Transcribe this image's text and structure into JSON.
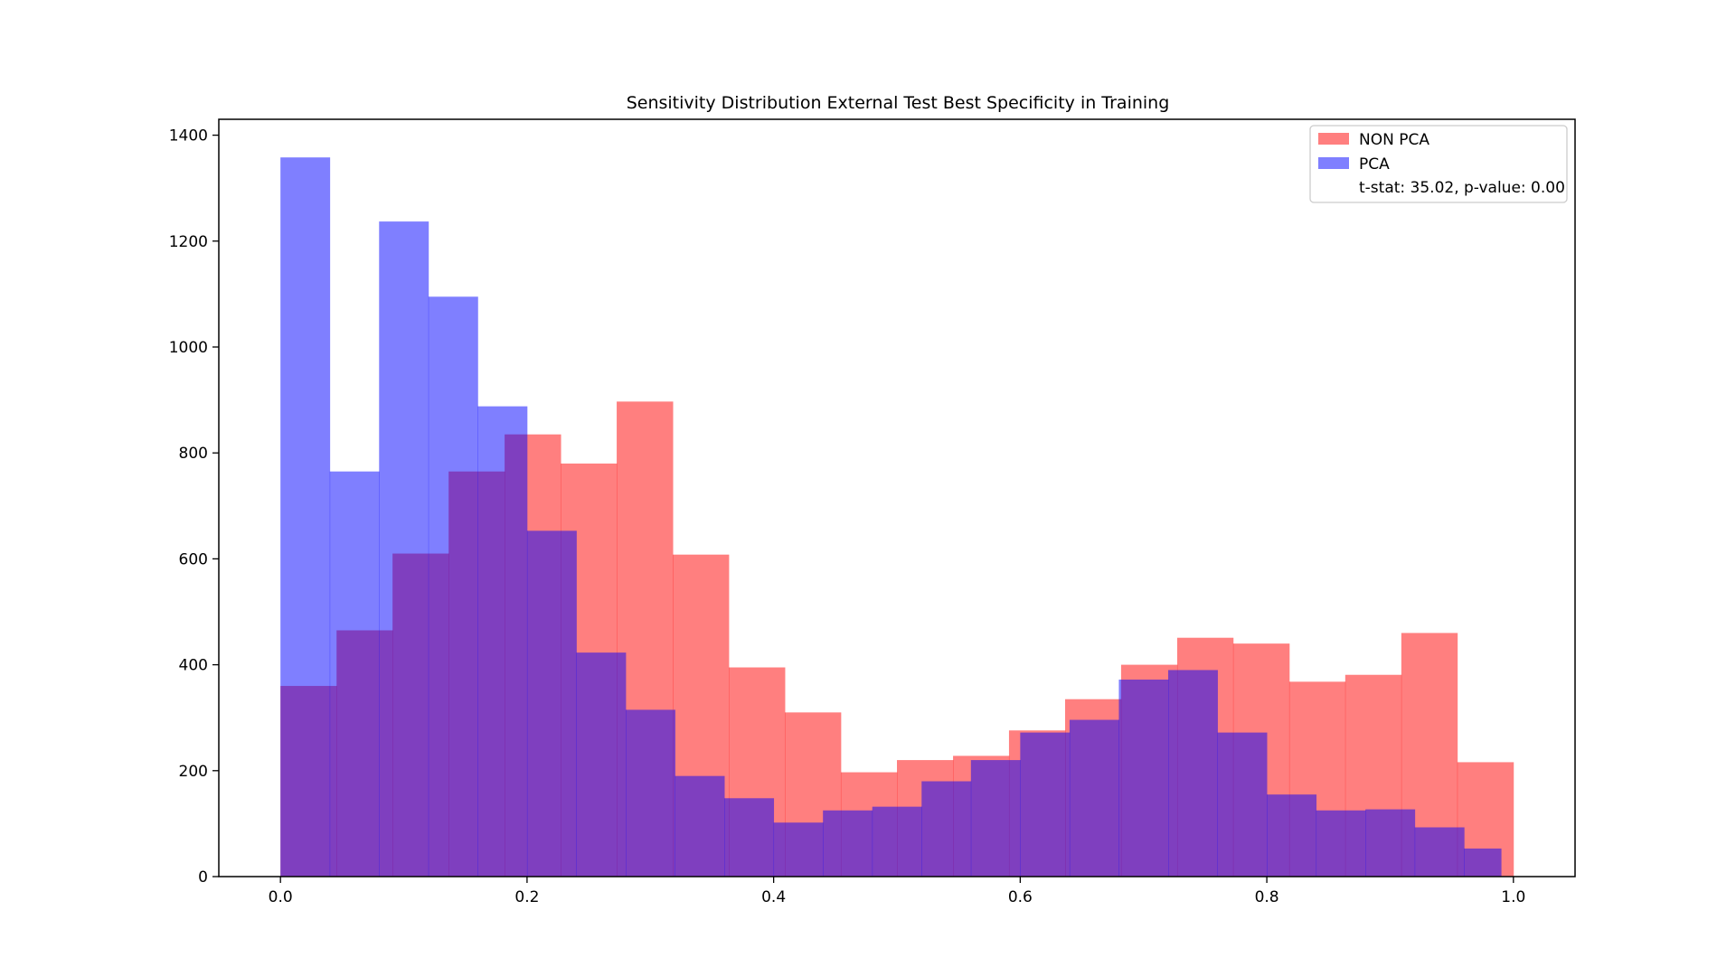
{
  "chart_data": {
    "type": "bar",
    "title": "Sensitivity Distribution External Test Best Specificity in Training",
    "xlabel": "",
    "ylabel": "",
    "xlim": [
      -0.05,
      1.05
    ],
    "ylim": [
      0,
      1430
    ],
    "xticks": [
      0.0,
      0.2,
      0.4,
      0.6,
      0.8,
      1.0
    ],
    "xtick_labels": [
      "0.0",
      "0.2",
      "0.4",
      "0.6",
      "0.8",
      "1.0"
    ],
    "yticks": [
      0,
      200,
      400,
      600,
      800,
      1000,
      1200,
      1400
    ],
    "ytick_labels": [
      "0",
      "200",
      "400",
      "600",
      "800",
      "1000",
      "1200",
      "1400"
    ],
    "grid": false,
    "legend_position": "upper right",
    "series": [
      {
        "name": "NON PCA",
        "color": "#ff0000",
        "opacity": 0.5,
        "bin_edges": [
          0.0,
          0.0455,
          0.0909,
          0.1364,
          0.1818,
          0.2273,
          0.2727,
          0.3182,
          0.3636,
          0.4091,
          0.4545,
          0.5,
          0.5455,
          0.5909,
          0.6364,
          0.6818,
          0.7273,
          0.7727,
          0.8182,
          0.8636,
          0.9091,
          0.9545,
          1.0
        ],
        "counts": [
          360,
          465,
          610,
          765,
          835,
          780,
          897,
          608,
          395,
          310,
          197,
          220,
          228,
          276,
          335,
          400,
          451,
          440,
          368,
          381,
          460,
          216
        ]
      },
      {
        "name": "PCA",
        "color": "#0000ff",
        "opacity": 0.5,
        "bin_edges": [
          0.0,
          0.04,
          0.08,
          0.12,
          0.16,
          0.2,
          0.24,
          0.28,
          0.32,
          0.36,
          0.4,
          0.44,
          0.48,
          0.52,
          0.56,
          0.6,
          0.64,
          0.68,
          0.72,
          0.76,
          0.8,
          0.84,
          0.88,
          0.92,
          0.96,
          0.99
        ],
        "counts": [
          1358,
          765,
          1237,
          1095,
          888,
          653,
          423,
          315,
          190,
          148,
          102,
          125,
          132,
          180,
          220,
          272,
          296,
          372,
          390,
          272,
          155,
          125,
          127,
          93,
          53
        ]
      }
    ],
    "annotation": "t-stat: 35.02, p-value: 0.00"
  }
}
